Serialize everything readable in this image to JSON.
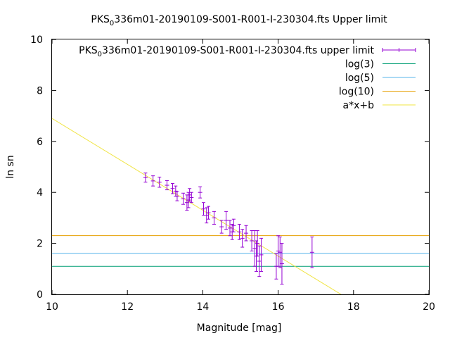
{
  "chart_data": {
    "type": "scatter",
    "title": {
      "prefix": "PKS",
      "sub": "0",
      "suffix": "336m01-20190109-S001-R001-I-230304.fts Upper limit"
    },
    "xlabel": "Magnitude [mag]",
    "ylabel": "ln sn",
    "xlim": [
      10,
      20
    ],
    "ylim": [
      0,
      10
    ],
    "xticks": [
      "10",
      "12",
      "14",
      "16",
      "18",
      "20"
    ],
    "yticks": [
      "0",
      "2",
      "4",
      "6",
      "8",
      "10"
    ],
    "grid": false,
    "legend_position": "top-right",
    "series": [
      {
        "name": {
          "prefix": "PKS",
          "sub": "0",
          "suffix": "336m01-20190109-S001-R001-I-230304.fts upper limit"
        },
        "kind": "errorbars",
        "color": "#9400d3",
        "points": [
          {
            "x": 12.48,
            "y": 4.58,
            "err": 0.18
          },
          {
            "x": 12.68,
            "y": 4.45,
            "err": 0.2
          },
          {
            "x": 12.85,
            "y": 4.4,
            "err": 0.2
          },
          {
            "x": 13.05,
            "y": 4.28,
            "err": 0.18
          },
          {
            "x": 13.2,
            "y": 4.15,
            "err": 0.2
          },
          {
            "x": 13.28,
            "y": 4.05,
            "err": 0.2
          },
          {
            "x": 13.32,
            "y": 3.85,
            "err": 0.18
          },
          {
            "x": 13.48,
            "y": 3.75,
            "err": 0.22
          },
          {
            "x": 13.58,
            "y": 3.6,
            "err": 0.3
          },
          {
            "x": 13.62,
            "y": 3.7,
            "err": 0.3
          },
          {
            "x": 13.65,
            "y": 3.9,
            "err": 0.25
          },
          {
            "x": 13.7,
            "y": 3.8,
            "err": 0.2
          },
          {
            "x": 13.93,
            "y": 4.0,
            "err": 0.22
          },
          {
            "x": 14.02,
            "y": 3.35,
            "err": 0.25
          },
          {
            "x": 14.1,
            "y": 3.1,
            "err": 0.3
          },
          {
            "x": 14.15,
            "y": 3.2,
            "err": 0.25
          },
          {
            "x": 14.3,
            "y": 3.0,
            "err": 0.25
          },
          {
            "x": 14.5,
            "y": 2.65,
            "err": 0.25
          },
          {
            "x": 14.62,
            "y": 2.9,
            "err": 0.35
          },
          {
            "x": 14.72,
            "y": 2.6,
            "err": 0.3
          },
          {
            "x": 14.78,
            "y": 2.45,
            "err": 0.3
          },
          {
            "x": 14.82,
            "y": 2.7,
            "err": 0.25
          },
          {
            "x": 14.97,
            "y": 2.45,
            "err": 0.3
          },
          {
            "x": 15.05,
            "y": 2.2,
            "err": 0.35
          },
          {
            "x": 15.15,
            "y": 2.4,
            "err": 0.3
          },
          {
            "x": 15.3,
            "y": 2.1,
            "err": 0.4
          },
          {
            "x": 15.38,
            "y": 1.8,
            "err": 0.7
          },
          {
            "x": 15.42,
            "y": 1.5,
            "err": 0.6
          },
          {
            "x": 15.45,
            "y": 2.0,
            "err": 0.5
          },
          {
            "x": 15.5,
            "y": 1.3,
            "err": 0.6
          },
          {
            "x": 15.55,
            "y": 1.55,
            "err": 0.65
          },
          {
            "x": 15.95,
            "y": 1.1,
            "err": 0.5
          },
          {
            "x": 16.0,
            "y": 1.7,
            "err": 0.6
          },
          {
            "x": 16.05,
            "y": 1.65,
            "err": 0.6
          },
          {
            "x": 16.1,
            "y": 1.2,
            "err": 0.8
          },
          {
            "x": 16.9,
            "y": 1.65,
            "err": 0.6
          }
        ]
      },
      {
        "name": "log(3)",
        "kind": "hline",
        "y": 1.0986,
        "color": "#009e73"
      },
      {
        "name": "log(5)",
        "kind": "hline",
        "y": 1.6094,
        "color": "#56b4e9"
      },
      {
        "name": "log(10)",
        "kind": "hline",
        "y": 2.3026,
        "color": "#e69f00"
      },
      {
        "name": "a*x+b",
        "kind": "fitline",
        "slope": -0.9,
        "intercept": 15.9,
        "color": "#f0e442"
      }
    ]
  }
}
